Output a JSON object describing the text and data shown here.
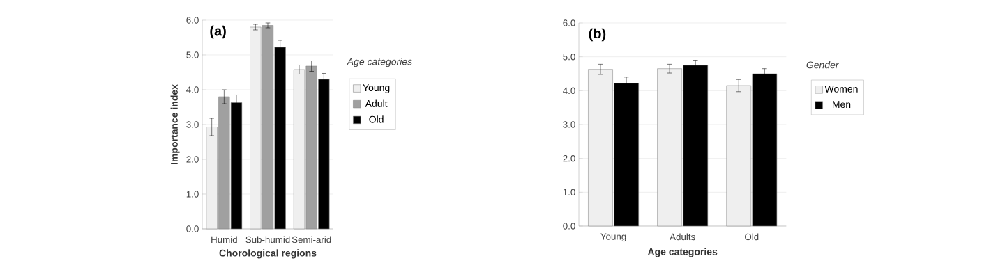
{
  "chart_data": [
    {
      "type": "bar",
      "ylabel": "Importance index",
      "xlabel": "Chorological regions",
      "legend_title": "Age categories",
      "annotations": [
        "(a)"
      ],
      "categories": [
        "Humid",
        "Sub-humid",
        "Semi-arid"
      ],
      "series": [
        {
          "name": "Young",
          "color": "#efefef",
          "values": [
            2.93,
            5.8,
            4.58
          ],
          "errors": [
            0.25,
            0.08,
            0.13
          ]
        },
        {
          "name": "Adult",
          "color": "#a0a0a0",
          "values": [
            3.8,
            5.85,
            4.68
          ],
          "errors": [
            0.2,
            0.07,
            0.15
          ]
        },
        {
          "name": "Old",
          "color": "#000000",
          "values": [
            3.63,
            5.22,
            4.3
          ],
          "errors": [
            0.22,
            0.2,
            0.17
          ]
        }
      ],
      "ylim": [
        0,
        6
      ],
      "yticks": [
        {
          "value": 0,
          "label": "0.0"
        },
        {
          "value": 1,
          "label": "1.0"
        },
        {
          "value": 2,
          "label": "2.0"
        },
        {
          "value": 3,
          "label": "3.0"
        },
        {
          "value": 4,
          "label": "4.0"
        },
        {
          "value": 5,
          "label": "5.0"
        },
        {
          "value": 6,
          "label": "6.0"
        }
      ],
      "grid": "y",
      "legend": "right"
    },
    {
      "type": "bar",
      "xlabel": "Age categories",
      "legend_title": "Gender",
      "annotations": [
        "(b)"
      ],
      "categories": [
        "Young",
        "Adults",
        "Old"
      ],
      "series": [
        {
          "name": "Women",
          "color": "#efefef",
          "values": [
            4.63,
            4.65,
            4.15
          ],
          "errors": [
            0.15,
            0.13,
            0.18
          ]
        },
        {
          "name": "Men",
          "color": "#000000",
          "values": [
            4.22,
            4.75,
            4.5
          ],
          "errors": [
            0.18,
            0.15,
            0.15
          ]
        }
      ],
      "ylim": [
        0,
        6
      ],
      "yticks": [
        {
          "value": 0,
          "label": "0.0"
        },
        {
          "value": 1,
          "label": "1.0"
        },
        {
          "value": 2,
          "label": "2.0"
        },
        {
          "value": 3,
          "label": "3.0"
        },
        {
          "value": 4,
          "label": "4.0"
        },
        {
          "value": 5,
          "label": "5.0"
        },
        {
          "value": 6,
          "label": "6.0"
        }
      ],
      "grid": "y",
      "legend": "right"
    }
  ]
}
